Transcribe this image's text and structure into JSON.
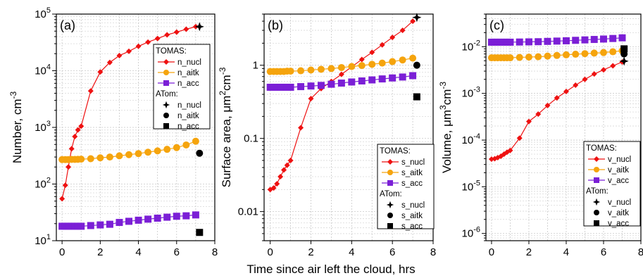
{
  "figure": {
    "shared_xlabel": "Time since air left the cloud, hrs"
  },
  "colors": {
    "nucl": "#ee1111",
    "aitk": "#f5a40d",
    "acc": "#7b1fd6",
    "atom": "#000000"
  },
  "chart_data": [
    {
      "type": "scatter",
      "panel_label": "(a)",
      "title": "",
      "ylabel": "Number, cm",
      "ylabel_sup": "-3",
      "xlabel": "",
      "xlim": [
        -0.3,
        8
      ],
      "ylim": [
        10,
        100000
      ],
      "yscale": "log",
      "xticks": [
        0,
        2,
        4,
        6,
        8
      ],
      "yticks": [
        {
          "value": 10,
          "base": "10",
          "exp": "1"
        },
        {
          "value": 100,
          "base": "10",
          "exp": "2"
        },
        {
          "value": 1000,
          "base": "10",
          "exp": "3"
        },
        {
          "value": 10000,
          "base": "10",
          "exp": "4"
        },
        {
          "value": 100000,
          "base": "10",
          "exp": "5"
        }
      ],
      "grid": true,
      "legend": {
        "position": "right",
        "groups": [
          {
            "title": "TOMAS:",
            "entries": [
              "n_nucl",
              "n_aitk",
              "n_acc"
            ]
          },
          {
            "title": "ATom:",
            "entries": [
              "n_nucl",
              "n_aitk",
              "n_acc"
            ]
          }
        ]
      },
      "series": [
        {
          "name": "n_nucl",
          "model": "TOMAS",
          "marker": "diamond",
          "color_key": "nucl",
          "line": true,
          "x": [
            0,
            0.17,
            0.33,
            0.5,
            0.67,
            0.83,
            1.0,
            1.5,
            2.0,
            2.5,
            3.0,
            3.5,
            4.0,
            4.5,
            5.0,
            5.5,
            6.0,
            6.5,
            7.0
          ],
          "y": [
            55,
            95,
            200,
            420,
            690,
            900,
            1050,
            4400,
            9500,
            14000,
            18500,
            22000,
            27000,
            32000,
            37000,
            43000,
            48000,
            54000,
            60000
          ]
        },
        {
          "name": "n_aitk",
          "model": "TOMAS",
          "marker": "circle",
          "color_key": "aitk",
          "line": true,
          "x": [
            0,
            0.17,
            0.33,
            0.5,
            0.67,
            0.83,
            1.0,
            1.5,
            2.0,
            2.5,
            3.0,
            3.5,
            4.0,
            4.5,
            5.0,
            5.5,
            6.0,
            6.5,
            7.0
          ],
          "y": [
            270,
            270,
            270,
            272,
            272,
            273,
            275,
            280,
            290,
            300,
            315,
            330,
            345,
            365,
            385,
            410,
            440,
            490,
            570
          ]
        },
        {
          "name": "n_acc",
          "model": "TOMAS",
          "marker": "square",
          "color_key": "acc",
          "line": true,
          "x": [
            0,
            0.17,
            0.33,
            0.5,
            0.67,
            0.83,
            1.0,
            1.5,
            2.0,
            2.5,
            3.0,
            3.5,
            4.0,
            4.5,
            5.0,
            5.5,
            6.0,
            6.5,
            7.0
          ],
          "y": [
            18,
            18,
            18,
            18,
            18,
            18,
            18,
            18.5,
            19,
            19.5,
            21,
            22,
            23,
            24,
            25,
            26,
            27,
            27.5,
            28.5
          ]
        },
        {
          "name": "n_nucl",
          "model": "ATom",
          "marker": "plus4",
          "color_key": "atom",
          "line": false,
          "x": [
            7.2
          ],
          "y": [
            60000
          ]
        },
        {
          "name": "n_aitk",
          "model": "ATom",
          "marker": "circle",
          "color_key": "atom",
          "line": false,
          "x": [
            7.2
          ],
          "y": [
            350
          ]
        },
        {
          "name": "n_acc",
          "model": "ATom",
          "marker": "square",
          "color_key": "atom",
          "line": false,
          "x": [
            7.2
          ],
          "y": [
            14
          ]
        }
      ]
    },
    {
      "type": "scatter",
      "panel_label": "(b)",
      "title": "",
      "ylabel": "Surface area, μm",
      "ylabel_sup": "2",
      "ylabel_tail": "cm",
      "ylabel_tail_sup": "-3",
      "xlabel": "",
      "xlim": [
        -0.3,
        8
      ],
      "ylim": [
        0.004,
        5
      ],
      "yscale": "log",
      "xticks": [
        0,
        2,
        4,
        6,
        8
      ],
      "yticks": [
        {
          "value": 0.01,
          "label": "0.01"
        },
        {
          "value": 0.1,
          "label": "0.1"
        },
        {
          "value": 1,
          "label": "1"
        }
      ],
      "grid": true,
      "legend": {
        "position": "bottom-right",
        "groups": [
          {
            "title": "TOMAS:",
            "entries": [
              "s_nucl",
              "s_aitk",
              "s_acc"
            ]
          },
          {
            "title": "ATom:",
            "entries": [
              "s_nucl",
              "s_aitk",
              "s_acc"
            ]
          }
        ]
      },
      "series": [
        {
          "name": "s_nucl",
          "model": "TOMAS",
          "marker": "diamond",
          "color_key": "nucl",
          "line": true,
          "x": [
            0,
            0.17,
            0.33,
            0.5,
            0.67,
            0.83,
            1.0,
            1.5,
            2.0,
            2.5,
            3.0,
            3.5,
            4.0,
            4.5,
            5.0,
            5.5,
            6.0,
            6.5,
            7.0
          ],
          "y": [
            0.02,
            0.021,
            0.024,
            0.03,
            0.037,
            0.043,
            0.05,
            0.14,
            0.35,
            0.48,
            0.6,
            0.75,
            0.95,
            1.2,
            1.5,
            1.9,
            2.4,
            3.0,
            4.0
          ]
        },
        {
          "name": "s_aitk",
          "model": "TOMAS",
          "marker": "circle",
          "color_key": "aitk",
          "line": true,
          "x": [
            0,
            0.17,
            0.33,
            0.5,
            0.67,
            0.83,
            1.0,
            1.5,
            2.0,
            2.5,
            3.0,
            3.5,
            4.0,
            4.5,
            5.0,
            5.5,
            6.0,
            6.5,
            7.0
          ],
          "y": [
            0.82,
            0.82,
            0.82,
            0.82,
            0.82,
            0.83,
            0.83,
            0.84,
            0.86,
            0.88,
            0.9,
            0.93,
            0.96,
            0.99,
            1.03,
            1.07,
            1.12,
            1.18,
            1.25
          ]
        },
        {
          "name": "s_acc",
          "model": "TOMAS",
          "marker": "square",
          "color_key": "acc",
          "line": true,
          "x": [
            0,
            0.17,
            0.33,
            0.5,
            0.67,
            0.83,
            1.0,
            1.5,
            2.0,
            2.5,
            3.0,
            3.5,
            4.0,
            4.5,
            5.0,
            5.5,
            6.0,
            6.5,
            7.0
          ],
          "y": [
            0.5,
            0.5,
            0.5,
            0.5,
            0.5,
            0.5,
            0.5,
            0.51,
            0.52,
            0.53,
            0.55,
            0.57,
            0.59,
            0.61,
            0.63,
            0.65,
            0.67,
            0.69,
            0.72
          ]
        },
        {
          "name": "s_nucl",
          "model": "ATom",
          "marker": "plus4",
          "color_key": "atom",
          "line": false,
          "x": [
            7.2
          ],
          "y": [
            4.5
          ]
        },
        {
          "name": "s_aitk",
          "model": "ATom",
          "marker": "circle",
          "color_key": "atom",
          "line": false,
          "x": [
            7.2
          ],
          "y": [
            1.0
          ]
        },
        {
          "name": "s_acc",
          "model": "ATom",
          "marker": "square",
          "color_key": "atom",
          "line": false,
          "x": [
            7.2
          ],
          "y": [
            0.37
          ]
        }
      ]
    },
    {
      "type": "scatter",
      "panel_label": "(c)",
      "title": "",
      "ylabel": "Volume, μm",
      "ylabel_sup": "3",
      "ylabel_tail": "cm",
      "ylabel_tail_sup": "-3",
      "xlabel": "",
      "xlim": [
        -0.3,
        8
      ],
      "ylim": [
        7e-07,
        0.05
      ],
      "yscale": "log",
      "xticks": [
        0,
        2,
        4,
        6,
        8
      ],
      "yticks": [
        {
          "value": 1e-06,
          "base": "10",
          "exp": "-6"
        },
        {
          "value": 1e-05,
          "base": "10",
          "exp": "-5"
        },
        {
          "value": 0.0001,
          "base": "10",
          "exp": "-4"
        },
        {
          "value": 0.001,
          "base": "10",
          "exp": "-3"
        },
        {
          "value": 0.01,
          "base": "10",
          "exp": "-2"
        }
      ],
      "grid": true,
      "legend": {
        "position": "bottom-right",
        "groups": [
          {
            "title": "TOMAS:",
            "entries": [
              "v_nucl",
              "v_aitk",
              "v_acc"
            ]
          },
          {
            "title": "ATom:",
            "entries": [
              "v_nucl",
              "v_aitk",
              "v_acc"
            ]
          }
        ]
      },
      "series": [
        {
          "name": "v_nucl",
          "model": "TOMAS",
          "marker": "diamond",
          "color_key": "nucl",
          "line": true,
          "x": [
            0,
            0.17,
            0.33,
            0.5,
            0.67,
            0.83,
            1.0,
            1.5,
            2.0,
            2.5,
            3.0,
            3.5,
            4.0,
            4.5,
            5.0,
            5.5,
            6.0,
            6.5,
            7.0
          ],
          "y": [
            3.9e-05,
            4e-05,
            4.2e-05,
            4.5e-05,
            5e-05,
            5.5e-05,
            6e-05,
            0.00011,
            0.00025,
            0.00036,
            0.00055,
            0.0008,
            0.0011,
            0.0015,
            0.002,
            0.0026,
            0.0032,
            0.0039,
            0.0047
          ]
        },
        {
          "name": "v_aitk",
          "model": "TOMAS",
          "marker": "circle",
          "color_key": "aitk",
          "line": true,
          "x": [
            0,
            0.17,
            0.33,
            0.5,
            0.67,
            0.83,
            1.0,
            1.5,
            2.0,
            2.5,
            3.0,
            3.5,
            4.0,
            4.5,
            5.0,
            5.5,
            6.0,
            6.5,
            7.0
          ],
          "y": [
            0.0058,
            0.0058,
            0.0058,
            0.0058,
            0.0058,
            0.0058,
            0.0058,
            0.0059,
            0.006,
            0.0061,
            0.0063,
            0.0065,
            0.0067,
            0.0069,
            0.0071,
            0.0073,
            0.0075,
            0.0078,
            0.0082
          ]
        },
        {
          "name": "v_acc",
          "model": "TOMAS",
          "marker": "square",
          "color_key": "acc",
          "line": true,
          "x": [
            0,
            0.17,
            0.33,
            0.5,
            0.67,
            0.83,
            1.0,
            1.5,
            2.0,
            2.5,
            3.0,
            3.5,
            4.0,
            4.5,
            5.0,
            5.5,
            6.0,
            6.5,
            7.0
          ],
          "y": [
            0.0125,
            0.0125,
            0.0125,
            0.0125,
            0.0125,
            0.0125,
            0.0125,
            0.0126,
            0.0127,
            0.0128,
            0.013,
            0.0132,
            0.0134,
            0.0137,
            0.014,
            0.0143,
            0.0146,
            0.015,
            0.0155
          ]
        },
        {
          "name": "v_nucl",
          "model": "ATom",
          "marker": "plus4",
          "color_key": "atom",
          "line": false,
          "x": [
            7.1
          ],
          "y": [
            0.0049
          ]
        },
        {
          "name": "v_aitk",
          "model": "ATom",
          "marker": "circle",
          "color_key": "atom",
          "line": false,
          "x": [
            7.1
          ],
          "y": [
            0.007
          ]
        },
        {
          "name": "v_acc",
          "model": "ATom",
          "marker": "square",
          "color_key": "atom",
          "line": false,
          "x": [
            7.1
          ],
          "y": [
            0.009
          ]
        }
      ]
    }
  ]
}
